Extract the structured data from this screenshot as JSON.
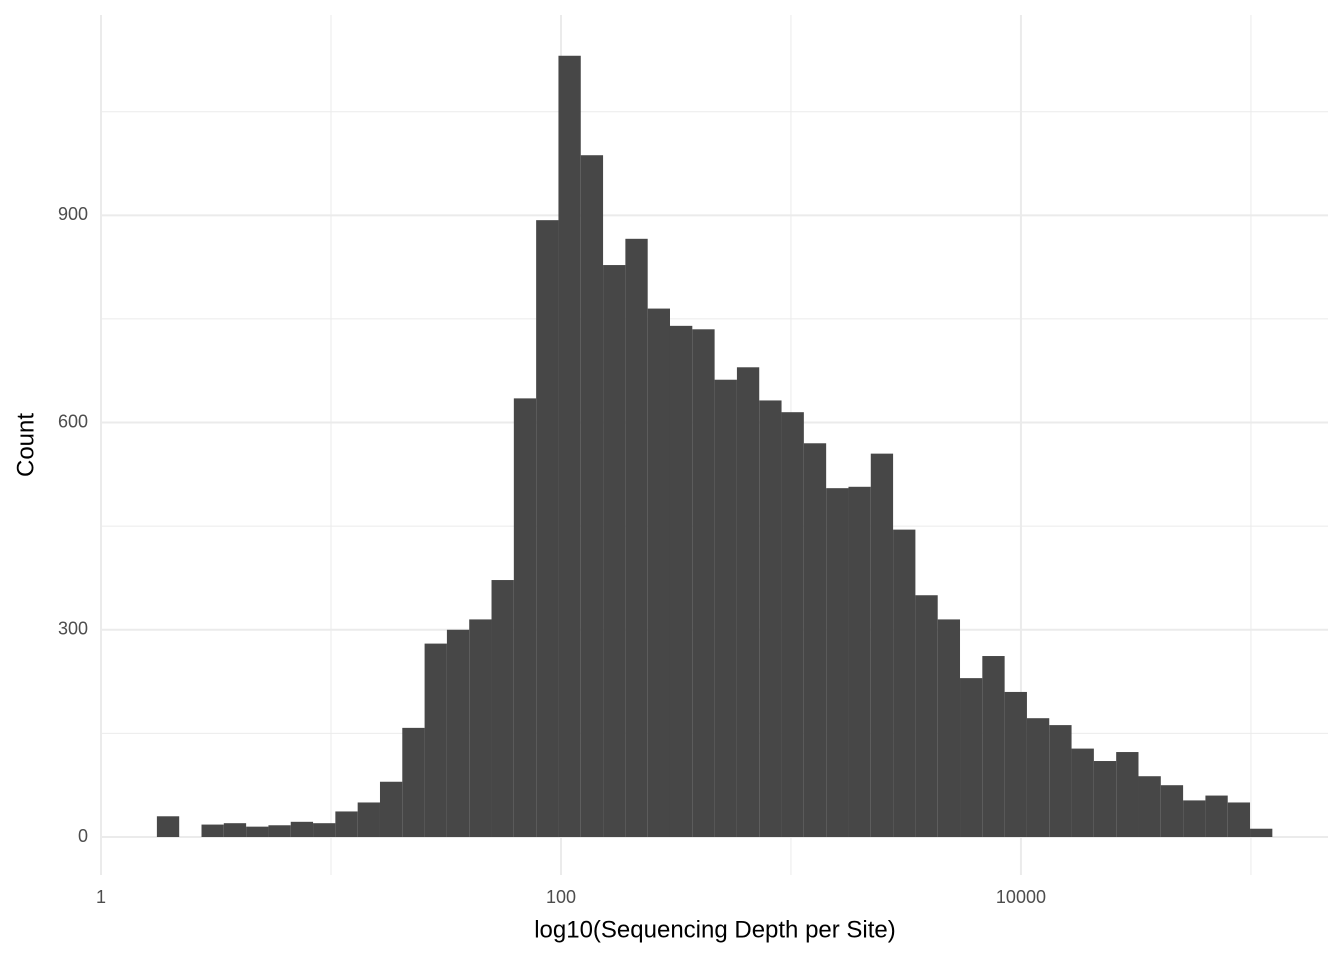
{
  "chart_data": {
    "type": "histogram",
    "x_label": "log10(Sequencing Depth per Site)",
    "y_label": "Count",
    "bins": [
      0.243,
      0.34,
      0.437,
      0.534,
      0.631,
      0.728,
      0.825,
      0.922,
      1.019,
      1.116,
      1.213,
      1.31,
      1.407,
      1.504,
      1.601,
      1.698,
      1.795,
      1.892,
      1.989,
      2.086,
      2.183,
      2.28,
      2.377,
      2.474,
      2.571,
      2.668,
      2.765,
      2.862,
      2.959,
      3.056,
      3.153,
      3.25,
      3.347,
      3.444,
      3.541,
      3.638,
      3.735,
      3.832,
      3.929,
      4.026,
      4.123,
      4.22,
      4.317,
      4.414,
      4.511,
      4.608,
      4.705,
      4.802,
      4.899,
      4.996,
      5.093
    ],
    "values": [
      30,
      0,
      18,
      20,
      15,
      17,
      22,
      20,
      37,
      50,
      80,
      158,
      280,
      300,
      315,
      372,
      635,
      893,
      1131,
      987,
      828,
      866,
      765,
      740,
      735,
      662,
      680,
      632,
      615,
      570,
      505,
      507,
      555,
      445,
      350,
      315,
      230,
      262,
      210,
      172,
      162,
      128,
      110,
      123,
      88,
      75,
      53,
      60,
      50,
      12
    ],
    "color": "#474747",
    "xlim": [
      0,
      5.335
    ],
    "xticks": [
      {
        "value": 0,
        "label": "1"
      },
      {
        "value": 2,
        "label": "100"
      },
      {
        "value": 4,
        "label": "10000"
      }
    ],
    "ylim": [
      -55,
      1190
    ],
    "yticks": [
      0,
      300,
      600,
      900
    ],
    "grid": true
  }
}
